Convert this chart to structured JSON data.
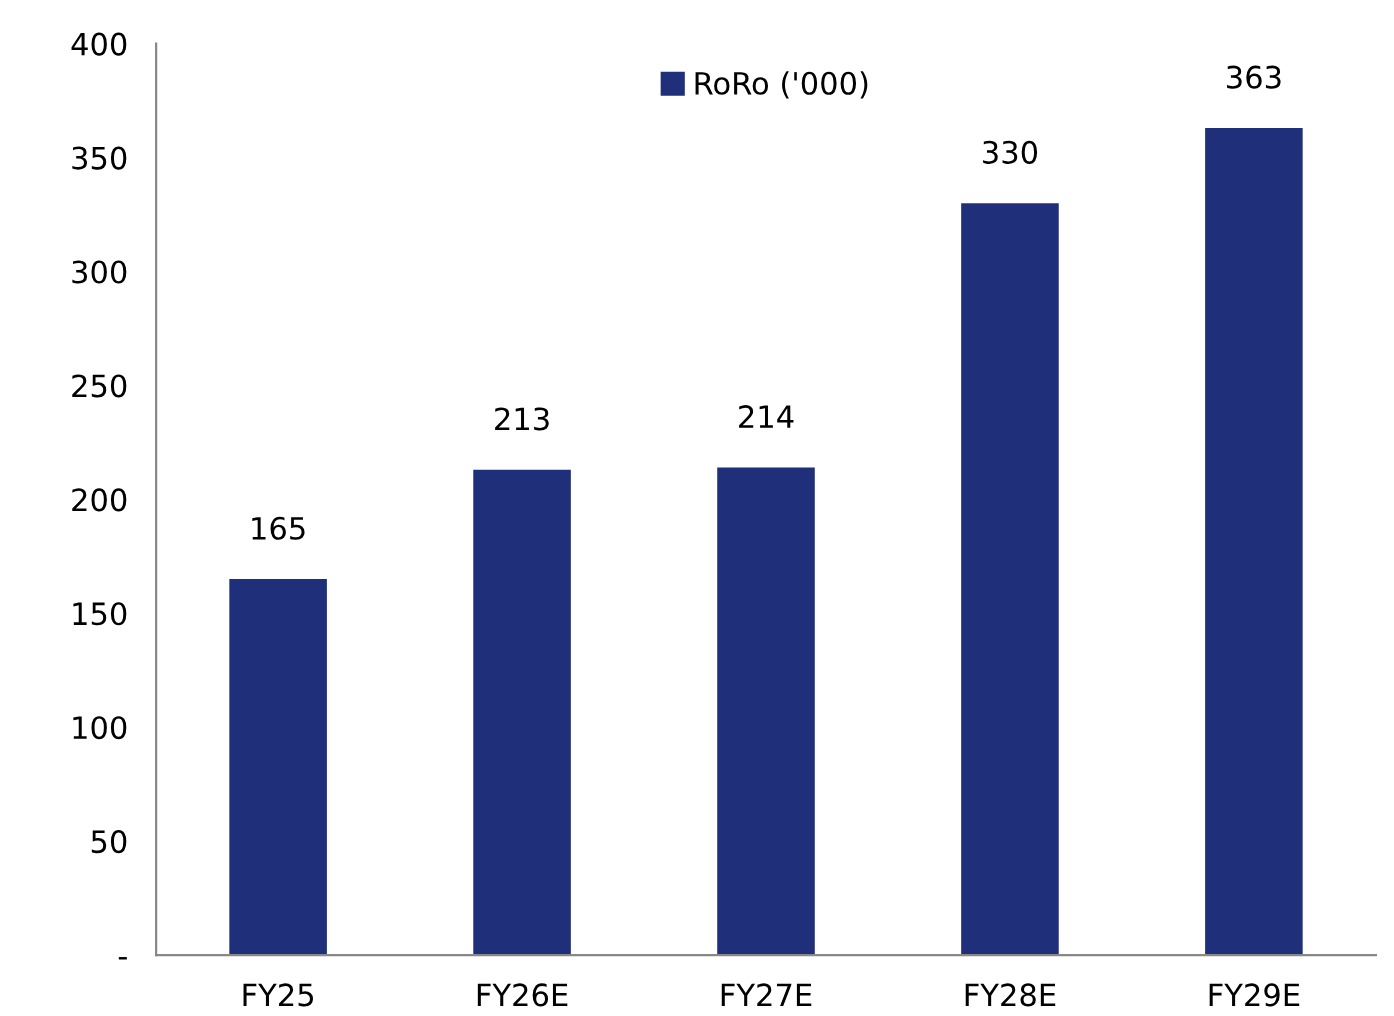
{
  "chart_data": {
    "type": "bar",
    "categories": [
      "FY25",
      "FY26E",
      "FY27E",
      "FY28E",
      "FY29E"
    ],
    "series": [
      {
        "name": "RoRo ('000)",
        "color": "#1f2f7a",
        "values": [
          165,
          213,
          214,
          330,
          363
        ]
      }
    ],
    "ylim": [
      0,
      400
    ],
    "yticks": [
      {
        "value": 0,
        "label": "-"
      },
      50,
      100,
      150,
      200,
      250,
      300,
      350,
      400
    ],
    "data_labels": true,
    "legend": "top",
    "grid": false
  }
}
